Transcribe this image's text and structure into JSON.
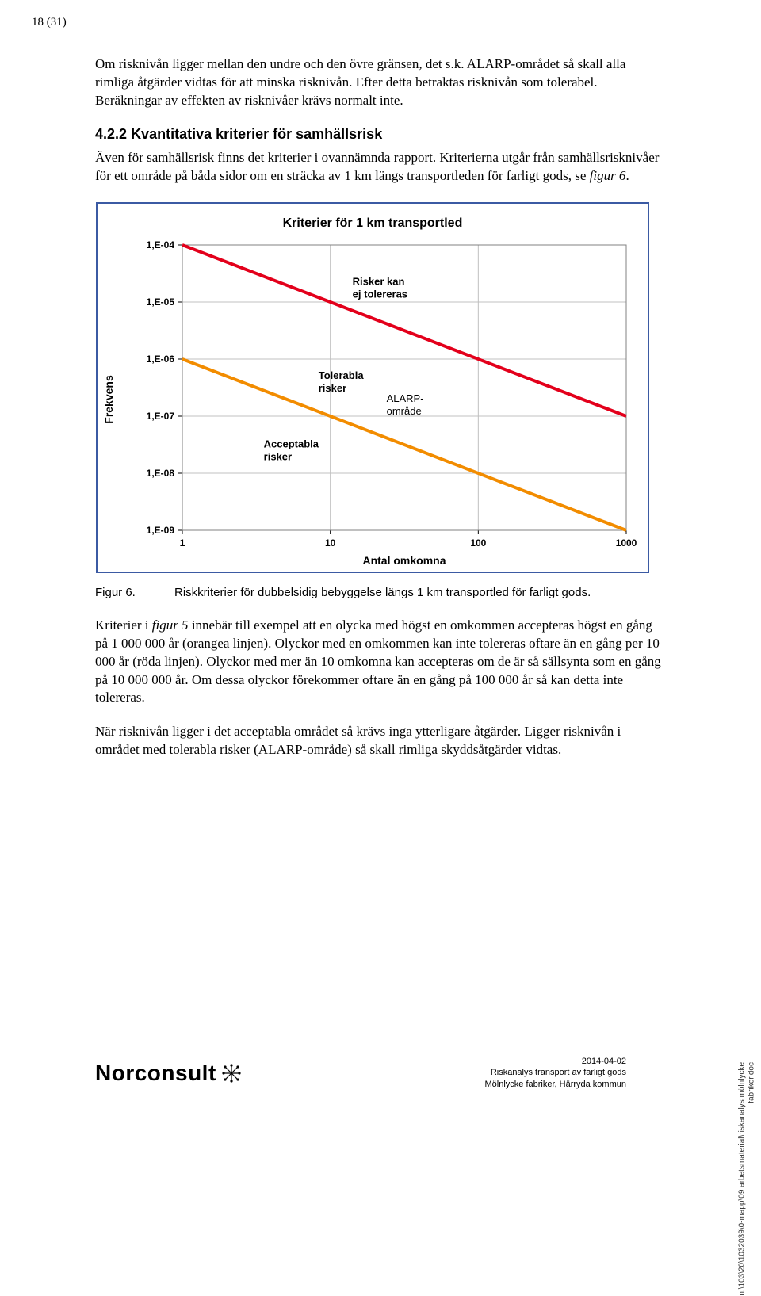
{
  "page_number": "18 (31)",
  "para1": "Om risknivån ligger mellan den undre och den övre gränsen, det s.k. ALARP-området så skall alla rimliga åtgärder vidtas för att minska risknivån. Efter detta betraktas risknivån som tolerabel. Beräkningar av effekten av risknivåer krävs normalt inte.",
  "section_number": "4.2.2",
  "section_title": "Kvantitativa kriterier för samhällsrisk",
  "para2_a": "Även för samhällsrisk finns det kriterier i ovannämnda rapport. Kriterierna utgår från samhällsrisknivåer för ett område på båda sidor om en sträcka av 1 km längs transportleden för farligt gods, se ",
  "para2_b": "figur 6",
  "para2_c": ".",
  "figure_label": "Figur 6.",
  "figure_caption": "Riskkriterier för dubbelsidig bebyggelse längs 1 km transportled för farligt gods.",
  "para3_a": "Kriterier i ",
  "para3_b": "figur 5",
  "para3_c": " innebär till exempel att en olycka med högst en omkommen accepteras högst en gång på 1 000 000 år (orangea linjen). Olyckor med en omkommen kan inte tolereras oftare än en gång per 10 000 år (röda linjen). Olyckor med mer än 10 omkomna kan accepteras om de är så sällsynta som en gång på 10 000 000 år. Om dessa olyckor förekommer oftare än en gång på 100 000 år så kan detta inte tolereras.",
  "para4": "När risknivån ligger i det acceptabla området så krävs inga ytterligare åtgärder. Ligger risknivån i området med tolerabla risker (ALARP-område) så skall rimliga skyddsåtgärder vidtas.",
  "footer_date": "2014-04-02",
  "footer_line2": "Riskanalys transport av farligt gods",
  "footer_line3": "Mölnlycke fabriker, Härryda kommun",
  "logo_text": "Norconsult",
  "side_path": "n:\\103\\20\\1032039\\0-mapp\\09 arbetsmaterial\\riskanalys mölnlycke",
  "side_path2": "fabriker.doc",
  "chart": {
    "type": "line",
    "title": "Kriterier för 1 km transportled",
    "xlabel": "Antal omkomna",
    "ylabel": "Frekvens",
    "yticks": [
      "1,E-04",
      "1,E-05",
      "1,E-06",
      "1,E-07",
      "1,E-08",
      "1,E-09"
    ],
    "xticks": [
      "1",
      "10",
      "100",
      "1000"
    ],
    "annotations": {
      "top": "Risker kan\nej tolereras",
      "mid": "Tolerabla\nrisker",
      "alarp": "ALARP-\nområde",
      "bot": "Acceptabla\nrisker"
    },
    "colors": {
      "border": "#3b5aa3",
      "grid": "#c0c0c0",
      "upper_line": "#e3001b",
      "lower_line": "#f28c00",
      "text": "#000000",
      "background": "#ffffff"
    },
    "title_fontsize": 16,
    "label_fontsize": 14,
    "tick_fontsize": 12,
    "annotation_fontsize": 13,
    "line_width": 4,
    "x_log": true,
    "y_log": true,
    "upper_line_points": [
      [
        1,
        -4
      ],
      [
        1000,
        -7
      ]
    ],
    "lower_line_points": [
      [
        1,
        -6
      ],
      [
        1000,
        -9
      ]
    ]
  }
}
